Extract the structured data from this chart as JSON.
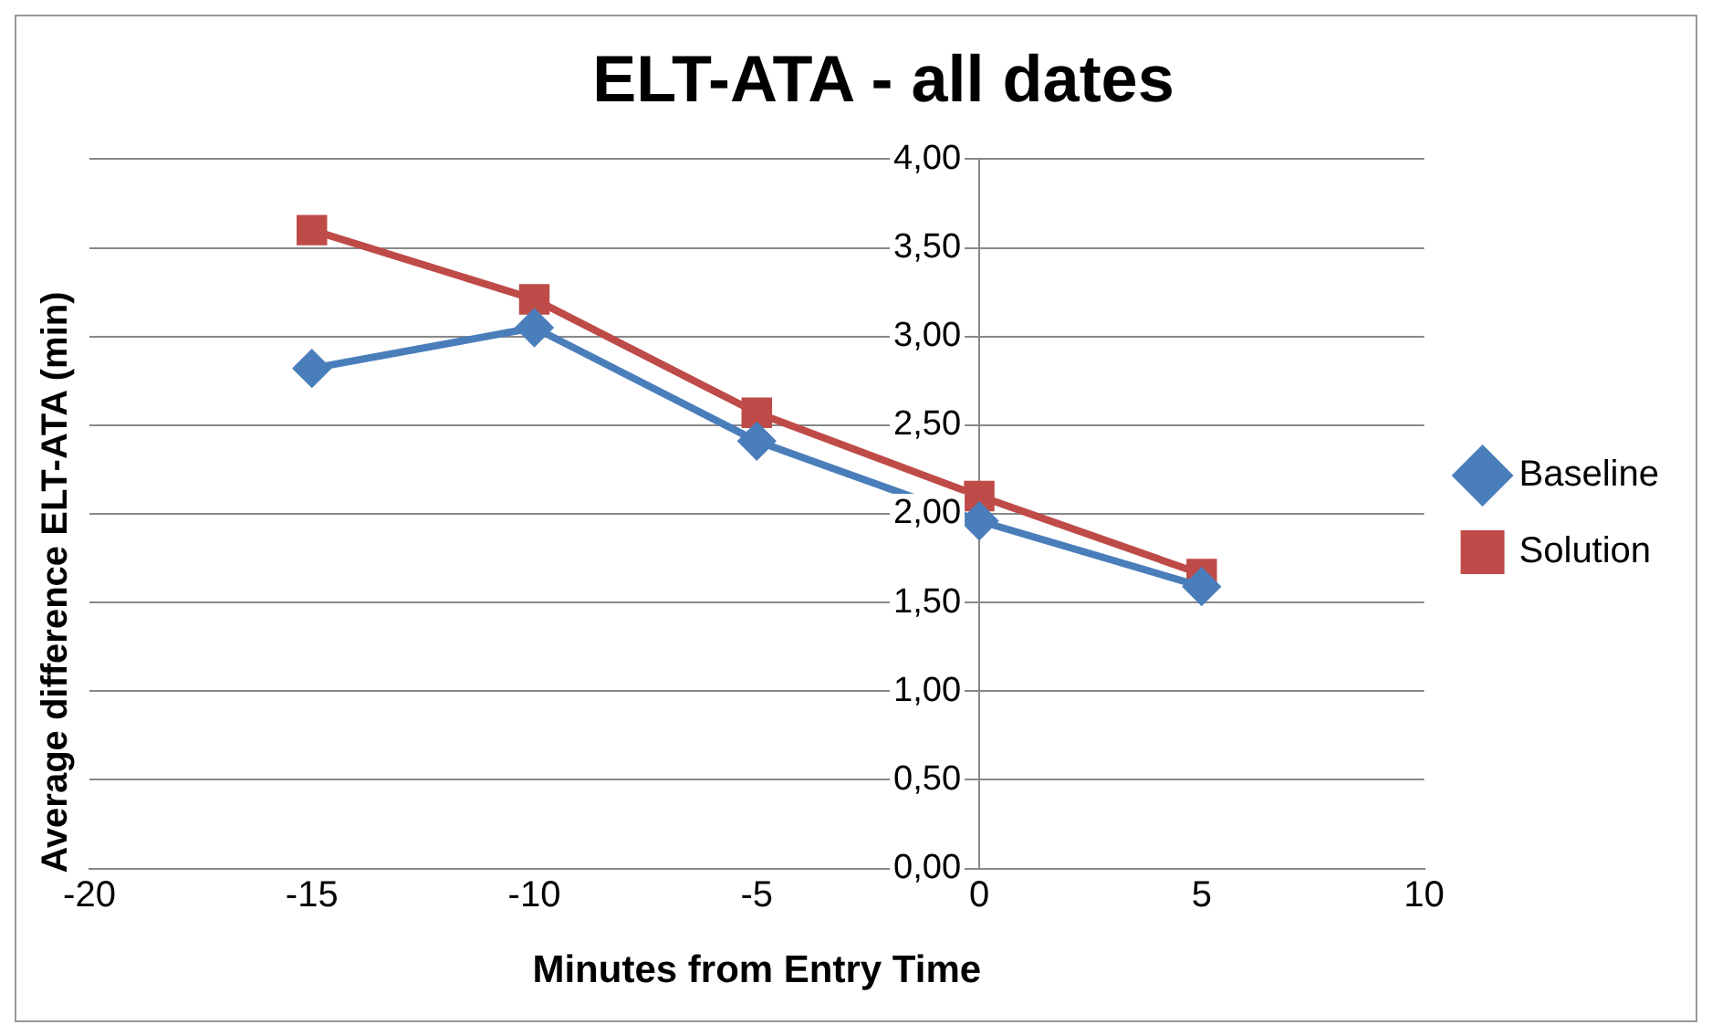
{
  "chart_data": {
    "type": "line",
    "title": "ELT-ATA - all dates",
    "xlabel": "Minutes from Entry Time",
    "ylabel": "Average difference ELT-ATA (min)",
    "x": [
      -15,
      -10,
      -5,
      0,
      5
    ],
    "series": [
      {
        "name": "Baseline",
        "color": "#4a7ebb",
        "marker": "diamond",
        "values": [
          2.82,
          3.05,
          2.41,
          1.96,
          1.59
        ]
      },
      {
        "name": "Solution",
        "color": "#be4b48",
        "marker": "square",
        "values": [
          3.6,
          3.21,
          2.57,
          2.1,
          1.66
        ]
      }
    ],
    "xlim": [
      -20,
      10
    ],
    "xticks": [
      -20,
      -15,
      -10,
      -5,
      0,
      5,
      10
    ],
    "ylim": [
      0,
      4
    ],
    "yticks": [
      {
        "value": 0,
        "label": "0,00"
      },
      {
        "value": 0.5,
        "label": "0,50"
      },
      {
        "value": 1,
        "label": "1,00"
      },
      {
        "value": 1.5,
        "label": "1,50"
      },
      {
        "value": 2,
        "label": "2,00"
      },
      {
        "value": 2.5,
        "label": "2,50"
      },
      {
        "value": 3,
        "label": "3,00"
      },
      {
        "value": 3.5,
        "label": "3,50"
      },
      {
        "value": 4,
        "label": "4,00"
      }
    ],
    "grid": "y",
    "legend": "right",
    "line_style": "solid"
  }
}
